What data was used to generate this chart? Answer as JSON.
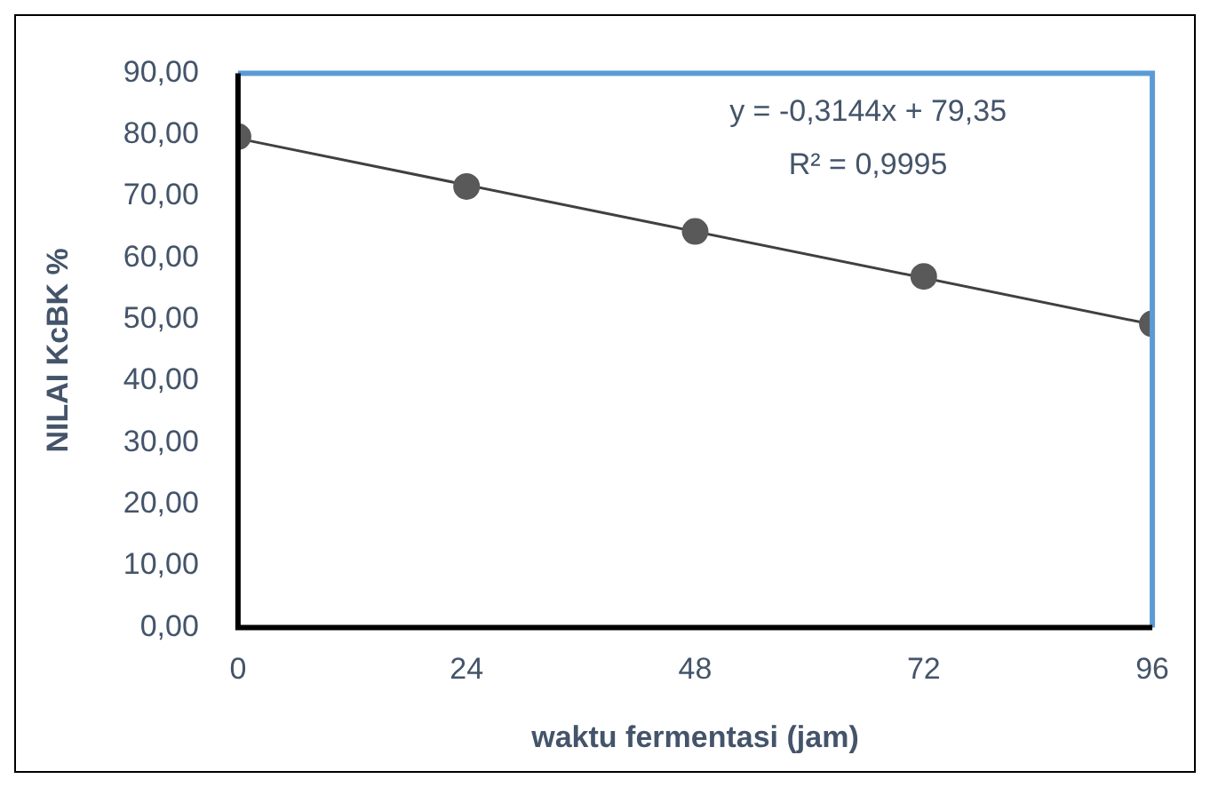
{
  "chart_data": {
    "type": "scatter",
    "xlabel": "waktu fermentasi (jam)",
    "ylabel": "NILAI KcBK %",
    "x": [
      0,
      24,
      48,
      72,
      96
    ],
    "series": [
      {
        "type": "scatter",
        "color": "#595959",
        "values": [
          79.7,
          71.6,
          64.3,
          57.0,
          49.3
        ],
        "marker": "circle"
      },
      {
        "type": "line",
        "color": "#404040",
        "x": [
          0,
          96
        ],
        "values": [
          79.4,
          49.2
        ],
        "marker": "none"
      }
    ],
    "line_style": "solid",
    "grid": false,
    "legend": false,
    "xlim": [
      0,
      96
    ],
    "xticks": [
      0,
      24,
      48,
      72,
      96
    ],
    "ylim": [
      0,
      90
    ],
    "yticks": [
      {
        "value": 0,
        "label": "0,00"
      },
      {
        "value": 10,
        "label": "10,00"
      },
      {
        "value": 20,
        "label": "20,00"
      },
      {
        "value": 30,
        "label": "30,00"
      },
      {
        "value": 40,
        "label": "40,00"
      },
      {
        "value": 50,
        "label": "50,00"
      },
      {
        "value": 60,
        "label": "60,00"
      },
      {
        "value": 70,
        "label": "70,00"
      },
      {
        "value": 80,
        "label": "80,00"
      },
      {
        "value": 90,
        "label": "90,00"
      }
    ],
    "annotations": [
      "y = -0,3144x + 79,35",
      "R² = 0,9995"
    ]
  }
}
